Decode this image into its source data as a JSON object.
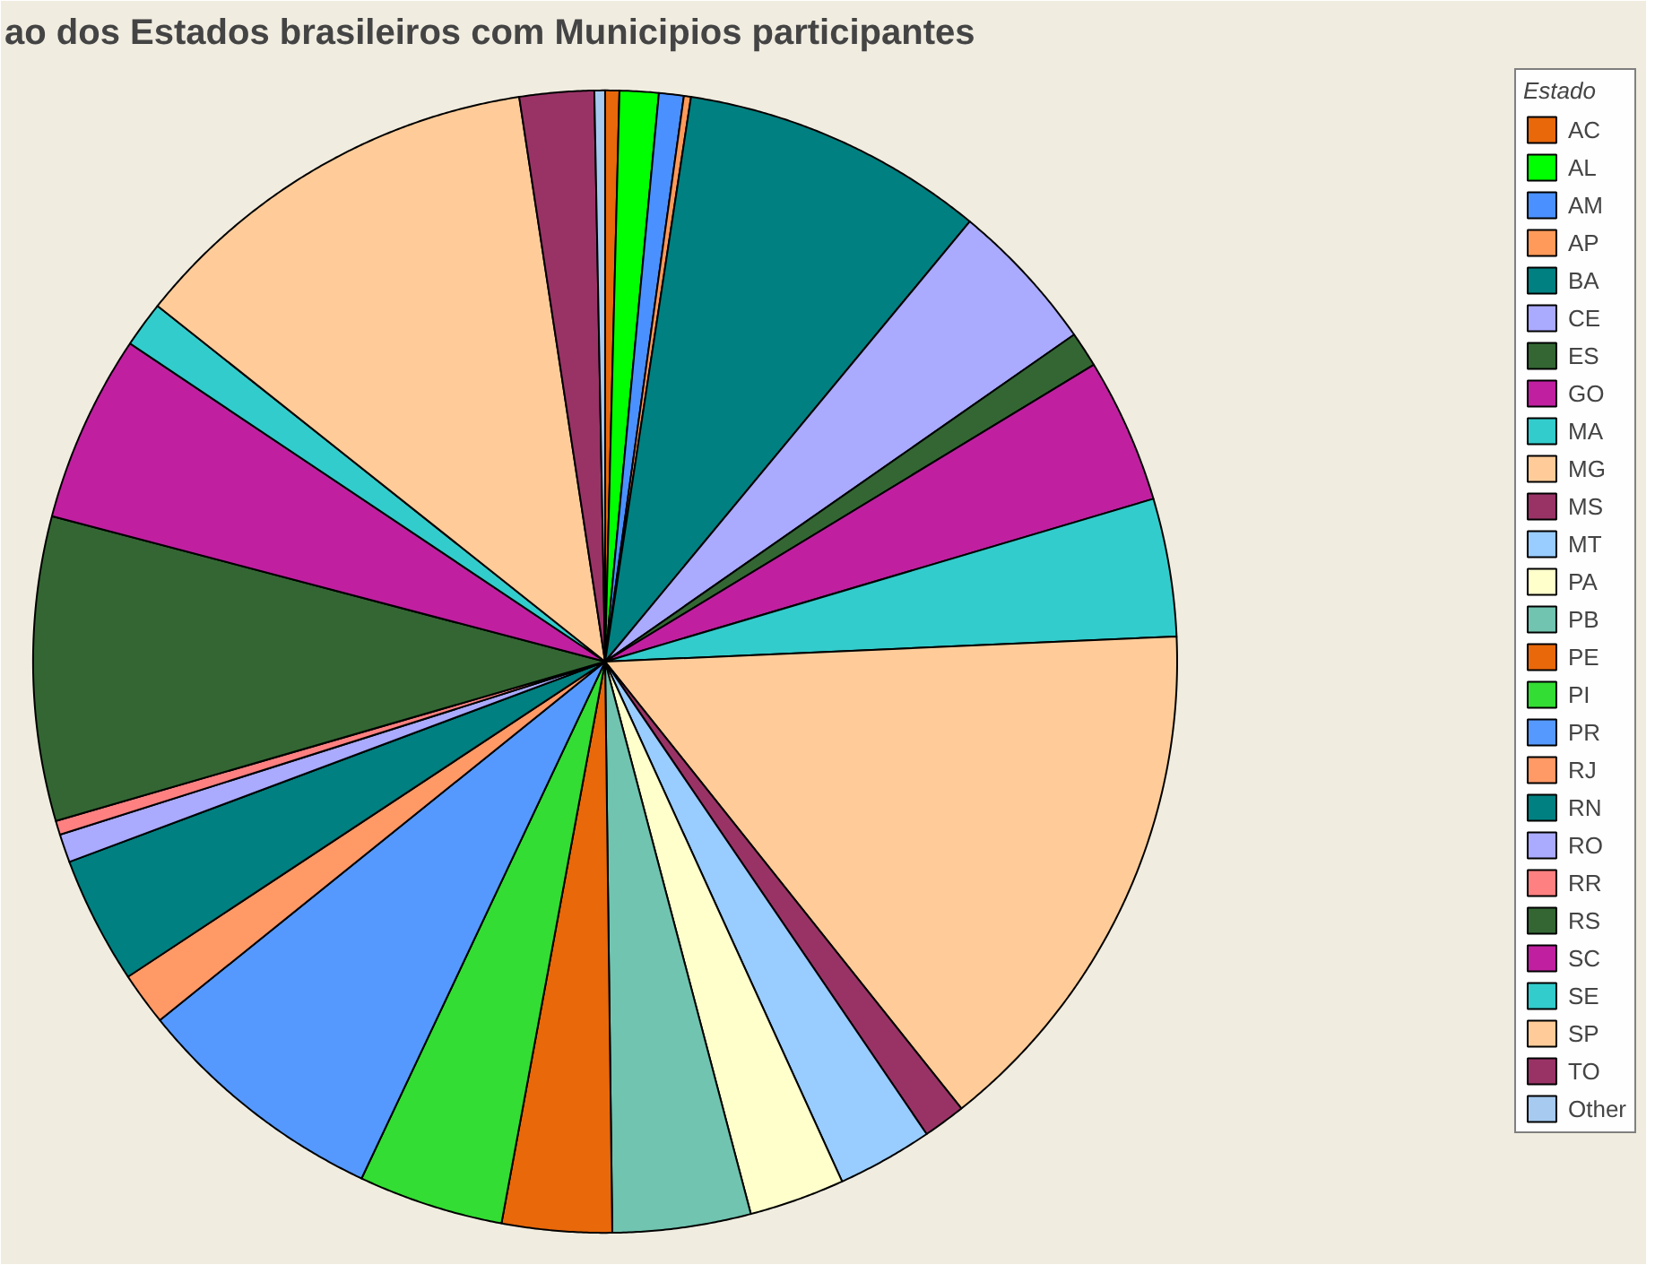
{
  "chart_data": {
    "type": "pie",
    "title": "ao dos Estados brasileiros com Municipios participantes",
    "legend_title": "Estado",
    "legend": "right",
    "categories": [
      "AC",
      "AL",
      "AM",
      "AP",
      "BA",
      "CE",
      "ES",
      "GO",
      "MA",
      "MG",
      "MS",
      "MT",
      "PA",
      "PB",
      "PE",
      "PI",
      "PR",
      "RJ",
      "RN",
      "RO",
      "RR",
      "RS",
      "SC",
      "SE",
      "SP",
      "TO",
      "Other"
    ],
    "values": [
      0.4,
      1.1,
      0.7,
      0.2,
      8.6,
      4.3,
      1.0,
      4.1,
      3.9,
      15.0,
      1.2,
      2.7,
      2.7,
      3.9,
      3.1,
      4.1,
      7.2,
      1.5,
      3.6,
      0.8,
      0.4,
      8.6,
      5.3,
      1.3,
      11.9,
      2.1,
      0.3
    ],
    "colors": [
      "#e8680a",
      "#00ff00",
      "#4a90ff",
      "#ff9a5a",
      "#008080",
      "#aaaaff",
      "#336633",
      "#c020a0",
      "#33cccc",
      "#ffcc99",
      "#993366",
      "#99ccff",
      "#ffffcc",
      "#70c4b0",
      "#e8680a",
      "#33dd33",
      "#5599ff",
      "#ff9966",
      "#008080",
      "#aaaaff",
      "#ff8080",
      "#336633",
      "#c020a0",
      "#33cccc",
      "#ffcc99",
      "#993366",
      "#a6caf0"
    ]
  }
}
